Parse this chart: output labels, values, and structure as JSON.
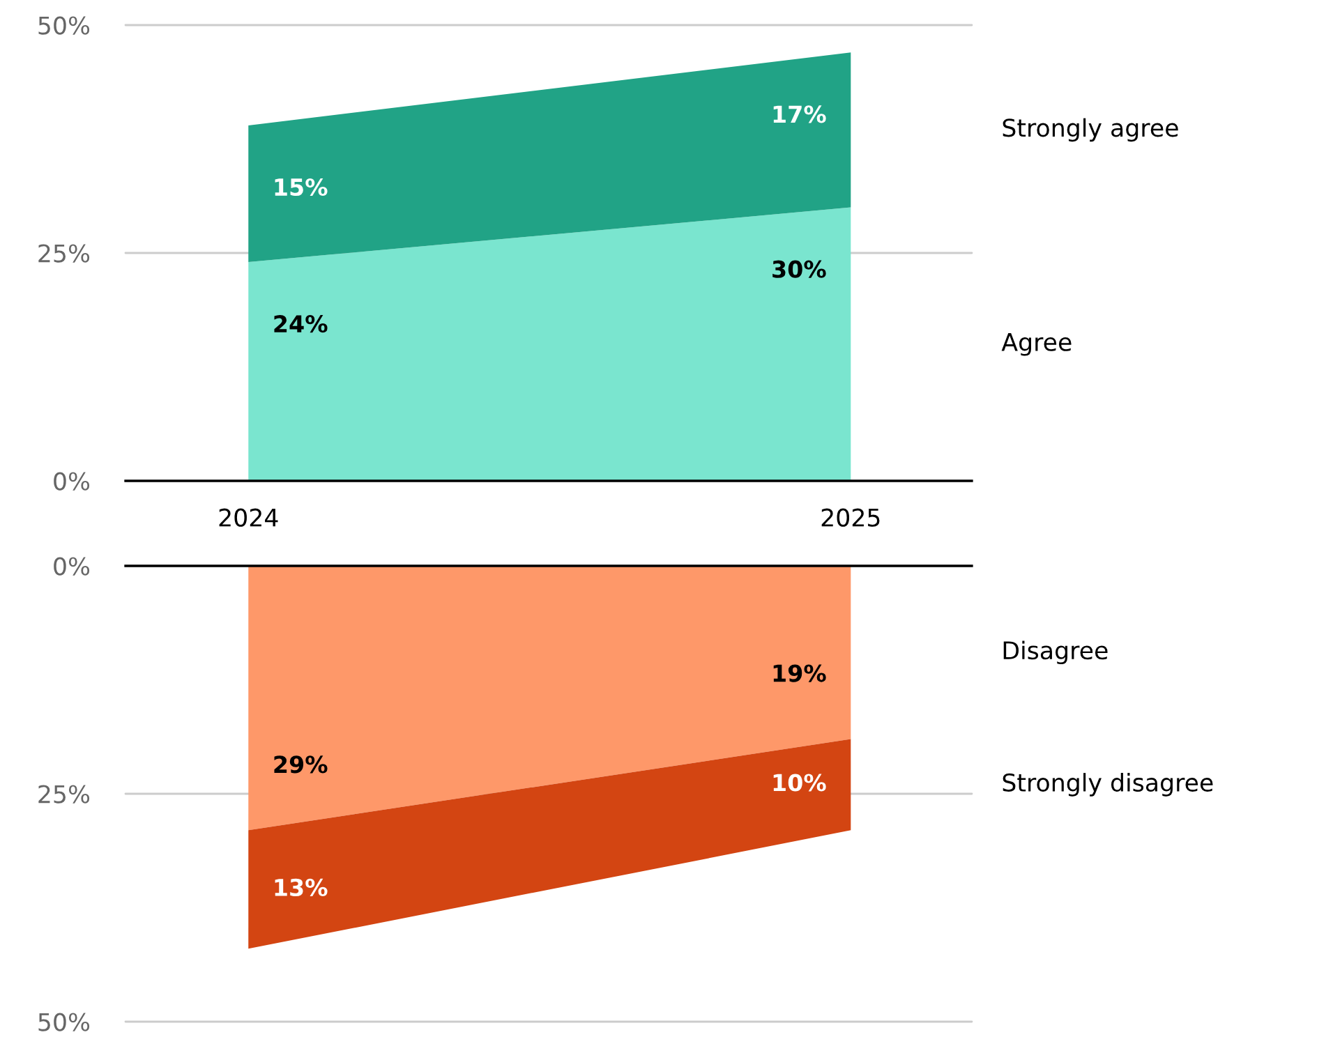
{
  "chart_data": [
    {
      "type": "area",
      "stacked": true,
      "categories": [
        "2024",
        "2025"
      ],
      "ylim": [
        0,
        50
      ],
      "yticks": [
        {
          "value": 0,
          "label": "0%"
        },
        {
          "value": 25,
          "label": "25%"
        },
        {
          "value": 50,
          "label": "50%"
        }
      ],
      "grid": "y",
      "series": [
        {
          "name": "Agree",
          "color": "#7ae5cf",
          "values": [
            24,
            30
          ],
          "value_labels": [
            "24%",
            "30%"
          ]
        },
        {
          "name": "Strongly agree",
          "color": "#21a386",
          "values": [
            15,
            17
          ],
          "value_labels": [
            "15%",
            "17%"
          ]
        }
      ]
    },
    {
      "type": "area",
      "stacked": true,
      "categories": [
        "2024",
        "2025"
      ],
      "ylim": [
        50,
        0
      ],
      "yticks": [
        {
          "value": 0,
          "label": "0%"
        },
        {
          "value": 25,
          "label": "25%"
        },
        {
          "value": 50,
          "label": "50%"
        }
      ],
      "grid": "y",
      "tick_labels": "y",
      "series": [
        {
          "name": "Disagree",
          "color": "#fe9869",
          "values": [
            29,
            19
          ],
          "value_labels": [
            "29%",
            "19%"
          ]
        },
        {
          "name": "Strongly disagree",
          "color": "#d34512",
          "values": [
            13,
            10
          ],
          "value_labels": [
            "13%",
            "10%"
          ]
        }
      ]
    }
  ]
}
